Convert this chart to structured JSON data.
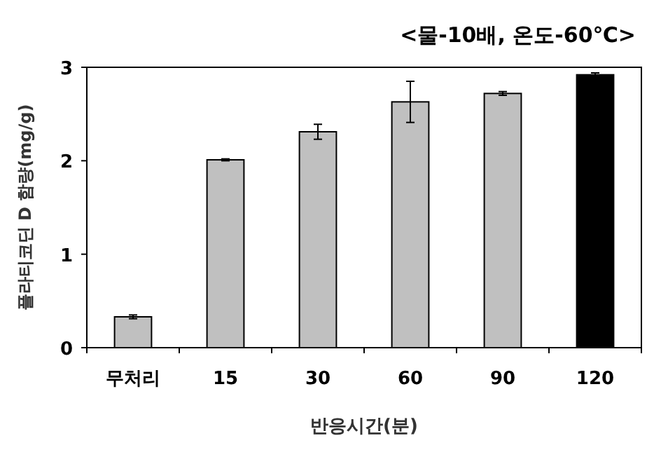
{
  "chart_data": {
    "type": "bar",
    "title": "<물-10배, 온도-60℃>",
    "xlabel": "반응시간(분)",
    "ylabel": "플라티코딘 D 함량(mg/g)",
    "categories": [
      "무처리",
      "15",
      "30",
      "60",
      "90",
      "120"
    ],
    "values": [
      0.33,
      2.01,
      2.31,
      2.63,
      2.72,
      2.92
    ],
    "errors": [
      0.02,
      0.01,
      0.08,
      0.22,
      0.02,
      0.02
    ],
    "colors": [
      "#c0c0c0",
      "#c0c0c0",
      "#c0c0c0",
      "#c0c0c0",
      "#c0c0c0",
      "#000000"
    ],
    "ylim": [
      0,
      3
    ],
    "yticks": [
      0,
      1,
      2,
      3
    ],
    "grid": false
  }
}
